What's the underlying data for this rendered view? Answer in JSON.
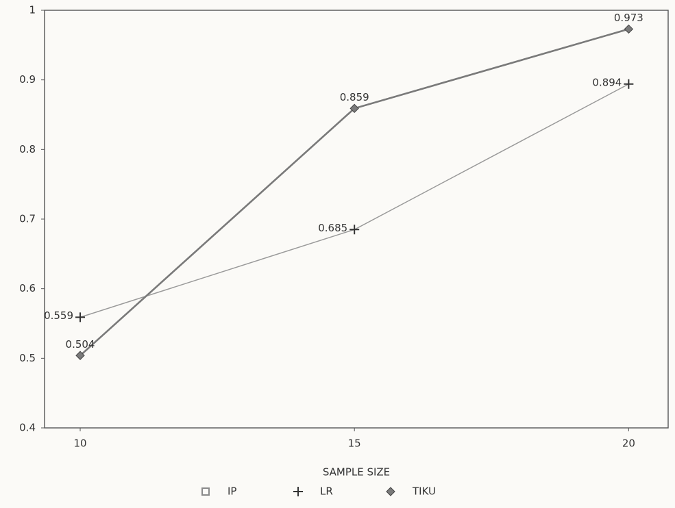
{
  "chart_data": {
    "type": "line",
    "x_label": "SAMPLE SIZE",
    "x": [
      10,
      15,
      20
    ],
    "series": [
      {
        "name": "IP",
        "color": "#8a8a8a",
        "marker": "square",
        "values": [
          0.504,
          0.859,
          0.973
        ]
      },
      {
        "name": "LR",
        "color": "#9a9a9a",
        "marker": "plus",
        "values": [
          0.559,
          0.685,
          0.894
        ]
      },
      {
        "name": "TIKU",
        "color": "#7a7a7a",
        "marker": "diamond",
        "values": [
          0.504,
          0.859,
          0.973
        ]
      }
    ],
    "data_labels_on": [
      "LR",
      "TIKU"
    ],
    "xlim": [
      9.35,
      20.72
    ],
    "xticks": [
      10,
      15,
      20
    ],
    "ylim": [
      0.4,
      1
    ],
    "yticks": [
      0.4,
      0.5,
      0.6,
      0.7,
      0.8,
      0.9,
      1
    ],
    "grid": false,
    "legend": "bottom"
  }
}
